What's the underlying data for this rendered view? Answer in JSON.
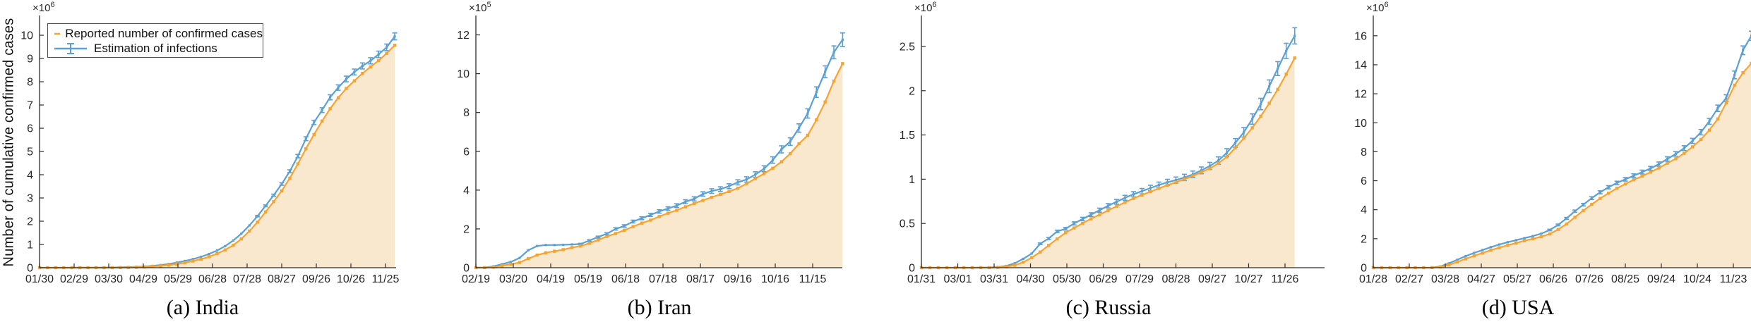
{
  "ylabel": "Number of cumulative confirmed cases",
  "legend": {
    "reported_label": "Reported number of confirmed cases",
    "estimated_label": "Estimation of infections"
  },
  "colors": {
    "reported": "#F7A332",
    "estimated": "#5BA0D5",
    "area_fill": "#FAE8CE",
    "axis": "#2b2b2b",
    "tick_text": "#262626"
  },
  "chart_data": [
    {
      "id": "india",
      "type": "line",
      "caption": "(a) India",
      "exponent_prefix": "×10",
      "exponent_sup": "6",
      "x_step_days": 7,
      "xtick_step_days": 30,
      "xtick_labels": [
        "01/30",
        "02/29",
        "03/30",
        "04/29",
        "05/29",
        "06/28",
        "07/28",
        "08/27",
        "09/26",
        "10/26",
        "11/25"
      ],
      "ytick_labels": [
        "0",
        "1",
        "2",
        "3",
        "4",
        "5",
        "6",
        "7",
        "8",
        "9",
        "10"
      ],
      "ytick_values": [
        0,
        1,
        2,
        3,
        4,
        5,
        6,
        7,
        8,
        9,
        10
      ],
      "ylim": [
        0,
        10.85
      ],
      "error_frac": 0.015,
      "series": [
        {
          "name": "Reported number of confirmed cases",
          "values": [
            0,
            0,
            0,
            0,
            0.001,
            0.001,
            0.001,
            0.001,
            0.001,
            0.002,
            0.006,
            0.013,
            0.021,
            0.033,
            0.053,
            0.078,
            0.112,
            0.158,
            0.216,
            0.287,
            0.367,
            0.474,
            0.605,
            0.768,
            0.97,
            1.24,
            1.58,
            1.96,
            2.4,
            2.84,
            3.31,
            3.85,
            4.47,
            5.12,
            5.73,
            6.31,
            6.84,
            7.31,
            7.71,
            8.04,
            8.36,
            8.64,
            8.91,
            9.22,
            9.57
          ]
        },
        {
          "name": "Estimation of infections",
          "values": [
            0,
            0,
            0,
            0,
            0.001,
            0.002,
            0.002,
            0.004,
            0.008,
            0.012,
            0.018,
            0.026,
            0.038,
            0.05,
            0.08,
            0.115,
            0.16,
            0.22,
            0.29,
            0.37,
            0.47,
            0.59,
            0.74,
            0.93,
            1.17,
            1.46,
            1.82,
            2.22,
            2.66,
            3.12,
            3.6,
            4.15,
            4.8,
            5.55,
            6.25,
            6.78,
            7.33,
            7.75,
            8.12,
            8.42,
            8.68,
            8.9,
            9.18,
            9.48,
            9.95
          ]
        }
      ]
    },
    {
      "id": "iran",
      "type": "line",
      "caption": "(b) Iran",
      "exponent_prefix": "×10",
      "exponent_sup": "5",
      "x_step_days": 7,
      "xtick_step_days": 30,
      "xtick_labels": [
        "02/19",
        "03/20",
        "04/19",
        "05/19",
        "06/18",
        "07/18",
        "08/17",
        "09/16",
        "10/16",
        "11/15"
      ],
      "ytick_labels": [
        "0",
        "2",
        "4",
        "6",
        "8",
        "10",
        "12"
      ],
      "ytick_values": [
        0,
        2,
        4,
        6,
        8,
        10,
        12
      ],
      "ylim": [
        0,
        13.0
      ],
      "error_frac": 0.03,
      "series": [
        {
          "name": "Reported number of confirmed cases",
          "values": [
            0.001,
            0.005,
            0.029,
            0.1,
            0.18,
            0.27,
            0.47,
            0.65,
            0.77,
            0.85,
            0.93,
            1.04,
            1.12,
            1.26,
            1.43,
            1.61,
            1.76,
            1.93,
            2.12,
            2.3,
            2.45,
            2.64,
            2.81,
            2.96,
            3.14,
            3.31,
            3.47,
            3.63,
            3.78,
            3.93,
            4.1,
            4.33,
            4.59,
            4.85,
            5.13,
            5.46,
            5.88,
            6.39,
            6.82,
            7.62,
            8.54,
            9.62,
            10.52
          ]
        },
        {
          "name": "Estimation of infections",
          "values": [
            0.002,
            0.01,
            0.07,
            0.18,
            0.3,
            0.5,
            0.9,
            1.12,
            1.17,
            1.17,
            1.18,
            1.2,
            1.22,
            1.4,
            1.58,
            1.75,
            2.0,
            2.15,
            2.38,
            2.55,
            2.72,
            2.9,
            3.05,
            3.2,
            3.4,
            3.55,
            3.8,
            3.95,
            4.05,
            4.2,
            4.4,
            4.55,
            4.8,
            5.1,
            5.55,
            6.1,
            6.5,
            7.2,
            7.95,
            9.05,
            10.1,
            11.1,
            11.75
          ]
        }
      ]
    },
    {
      "id": "russia",
      "type": "line",
      "caption": "(c) Russia",
      "exponent_prefix": "×10",
      "exponent_sup": "6",
      "x_step_days": 7,
      "xtick_step_days": 30,
      "xtick_labels": [
        "01/31",
        "03/01",
        "03/31",
        "04/30",
        "05/30",
        "06/29",
        "07/29",
        "08/28",
        "09/27",
        "10/27",
        "11/26"
      ],
      "ytick_labels": [
        "0",
        "0.5",
        "1",
        "1.5",
        "2",
        "2.5"
      ],
      "ytick_values": [
        0,
        0.5,
        1,
        1.5,
        2,
        2.5
      ],
      "ylim": [
        0,
        2.85
      ],
      "error_frac": 0.035,
      "series": [
        {
          "name": "Reported number of confirmed cases",
          "values": [
            0,
            0,
            0,
            0,
            0,
            0,
            0,
            0.001,
            0.001,
            0.004,
            0.012,
            0.028,
            0.062,
            0.114,
            0.177,
            0.252,
            0.326,
            0.396,
            0.449,
            0.502,
            0.553,
            0.6,
            0.647,
            0.694,
            0.739,
            0.783,
            0.822,
            0.859,
            0.897,
            0.932,
            0.966,
            1.0,
            1.037,
            1.079,
            1.123,
            1.18,
            1.253,
            1.354,
            1.463,
            1.581,
            1.712,
            1.858,
            2.015,
            2.187,
            2.37
          ]
        },
        {
          "name": "Estimation of infections",
          "values": [
            0,
            0,
            0,
            0,
            0,
            0,
            0,
            0.002,
            0.003,
            0.007,
            0.02,
            0.05,
            0.1,
            0.16,
            0.27,
            0.33,
            0.41,
            0.44,
            0.5,
            0.55,
            0.6,
            0.65,
            0.7,
            0.745,
            0.79,
            0.83,
            0.865,
            0.9,
            0.935,
            0.965,
            0.99,
            1.02,
            1.055,
            1.1,
            1.15,
            1.21,
            1.3,
            1.41,
            1.53,
            1.68,
            1.85,
            2.05,
            2.25,
            2.45,
            2.62
          ]
        }
      ]
    },
    {
      "id": "usa",
      "type": "line",
      "caption": "(d) USA",
      "exponent_prefix": "×10",
      "exponent_sup": "6",
      "x_step_days": 7,
      "xtick_step_days": 30,
      "xtick_labels": [
        "01/28",
        "02/27",
        "03/28",
        "04/27",
        "05/27",
        "06/26",
        "07/26",
        "08/25",
        "09/24",
        "10/24",
        "11/23"
      ],
      "ytick_labels": [
        "0",
        "2",
        "4",
        "6",
        "8",
        "10",
        "12",
        "14",
        "16"
      ],
      "ytick_values": [
        0,
        2,
        4,
        6,
        8,
        10,
        12,
        14,
        16
      ],
      "ylim": [
        0,
        17.4
      ],
      "error_frac": 0.02,
      "series": [
        {
          "name": "Reported number of confirmed cases",
          "values": [
            0,
            0,
            0,
            0,
            0,
            0,
            0.001,
            0.006,
            0.054,
            0.19,
            0.4,
            0.61,
            0.82,
            1.01,
            1.21,
            1.38,
            1.55,
            1.7,
            1.86,
            2.0,
            2.14,
            2.33,
            2.64,
            3.02,
            3.48,
            3.94,
            4.37,
            4.78,
            5.14,
            5.48,
            5.78,
            6.07,
            6.32,
            6.59,
            6.88,
            7.21,
            7.52,
            7.89,
            8.34,
            8.85,
            9.49,
            10.26,
            11.37,
            12.59,
            13.45,
            14.1
          ]
        },
        {
          "name": "Estimation of infections",
          "values": [
            0,
            0,
            0,
            0,
            0,
            0,
            0.002,
            0.01,
            0.09,
            0.3,
            0.55,
            0.8,
            1.02,
            1.22,
            1.42,
            1.6,
            1.76,
            1.9,
            2.04,
            2.18,
            2.35,
            2.6,
            2.95,
            3.4,
            3.9,
            4.35,
            4.8,
            5.2,
            5.55,
            5.85,
            6.1,
            6.35,
            6.6,
            6.85,
            7.15,
            7.5,
            7.85,
            8.25,
            8.75,
            9.35,
            10.1,
            11.0,
            11.7,
            13.3,
            15.0,
            16.0
          ]
        }
      ]
    }
  ]
}
